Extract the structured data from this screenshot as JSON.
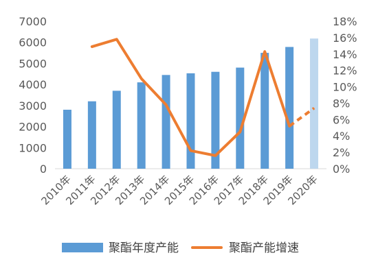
{
  "chart_data": {
    "type": "bar",
    "title": "",
    "categories": [
      "2010年",
      "2011年",
      "2012年",
      "2013年",
      "2014年",
      "2015年",
      "2016年",
      "2017年",
      "2018年",
      "2019年",
      "2020年"
    ],
    "series": [
      {
        "name": "聚酯年度产能",
        "type": "bar",
        "axis": "left",
        "values": [
          2800,
          3200,
          3700,
          4100,
          4450,
          4530,
          4600,
          4800,
          5500,
          5780,
          6180
        ],
        "highlight_last_as_forecast": true
      },
      {
        "name": "聚酯产能增速",
        "type": "line",
        "axis": "right",
        "values": [
          null,
          0.149,
          0.158,
          0.11,
          0.078,
          0.022,
          0.016,
          0.045,
          0.143,
          0.052,
          0.074
        ],
        "dashed_last_segment": true
      }
    ],
    "y_left": {
      "min": 0,
      "max": 7000,
      "ticks": [
        "0",
        "1000",
        "2000",
        "3000",
        "4000",
        "5000",
        "6000",
        "7000"
      ]
    },
    "y_right": {
      "min": 0,
      "max": 0.18,
      "ticks": [
        "0%",
        "2%",
        "4%",
        "6%",
        "8%",
        "10%",
        "12%",
        "14%",
        "16%",
        "18%"
      ]
    },
    "grid": false,
    "legend_position": "bottom",
    "colors": {
      "bar": "#5b9bd5",
      "bar_forecast": "#bdd7ee",
      "line": "#ed7d31",
      "text": "#595959"
    }
  }
}
